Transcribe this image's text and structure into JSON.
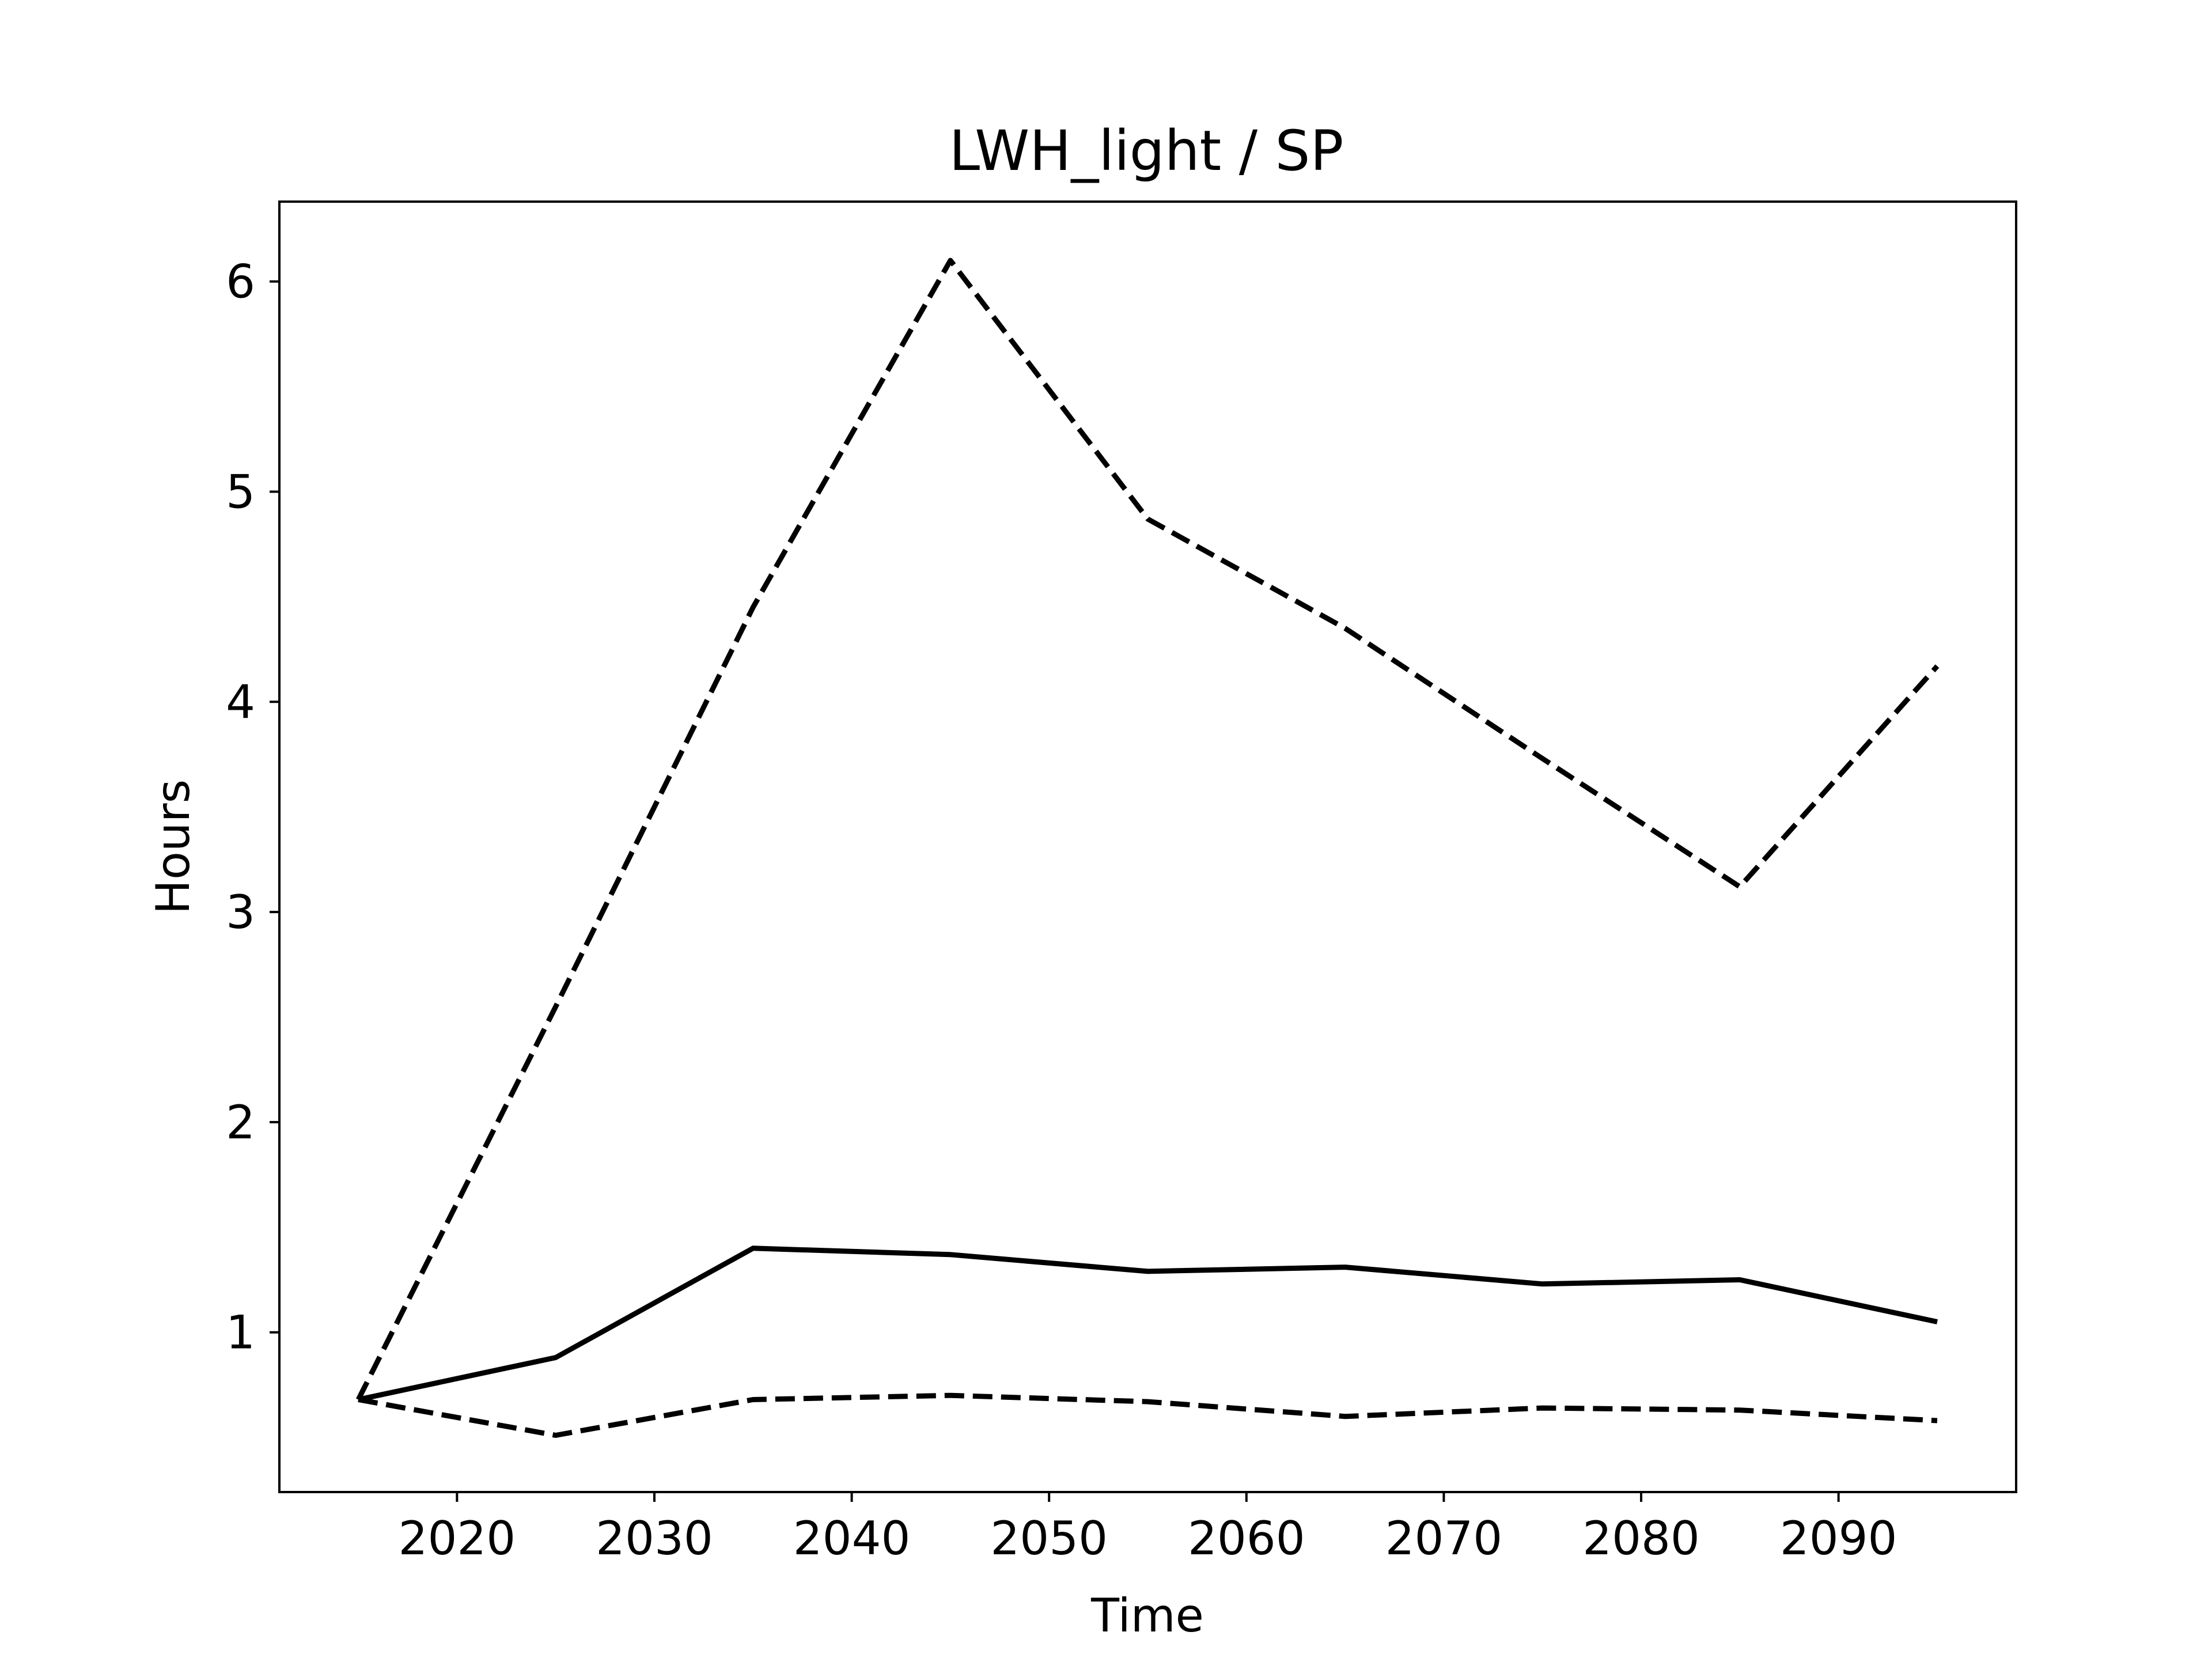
{
  "chart_data": {
    "type": "line",
    "title": "LWH_light / SP",
    "xlabel": "Time",
    "ylabel": "Hours",
    "x": [
      2015,
      2025,
      2035,
      2045,
      2055,
      2065,
      2075,
      2085,
      2095
    ],
    "series": [
      {
        "style": "solid",
        "values": [
          0.68,
          0.88,
          1.4,
          1.37,
          1.29,
          1.31,
          1.23,
          1.25,
          1.05
        ]
      },
      {
        "style": "dashed",
        "values": [
          0.68,
          2.55,
          4.45,
          6.1,
          4.87,
          4.35,
          3.73,
          3.12,
          4.17
        ]
      },
      {
        "style": "dashed",
        "values": [
          0.68,
          0.51,
          0.68,
          0.7,
          0.67,
          0.6,
          0.64,
          0.63,
          0.58
        ]
      }
    ],
    "xlim": [
      2011,
      2099
    ],
    "ylim": [
      0.24,
      6.38
    ],
    "xticks": [
      2020,
      2030,
      2040,
      2050,
      2060,
      2070,
      2080,
      2090
    ],
    "yticks": [
      1,
      2,
      3,
      4,
      5,
      6
    ],
    "grid": false,
    "line_color": "#000000"
  }
}
